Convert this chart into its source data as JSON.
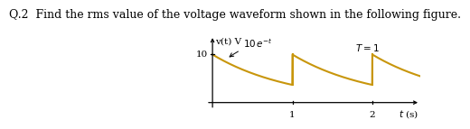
{
  "question_text": "Q.2  Find the rms value of the voltage waveform shown in the following figure.",
  "ylabel": "v(t) V",
  "xlabel": "t (s)",
  "y_tick_label": "10",
  "y_tick_val": 10,
  "x_tick_labels": [
    "1",
    "2"
  ],
  "x_tick_vals": [
    1,
    2
  ],
  "T_label": "T = 1",
  "waveform_color": "#C8960C",
  "background_color": "#ffffff",
  "xlim": [
    -0.08,
    2.6
  ],
  "ylim": [
    -1.5,
    14
  ],
  "period": 1.0,
  "amplitude": 10,
  "decay": 1.0,
  "num_periods": 3,
  "question_fontsize": 9.0,
  "axis_label_fontsize": 7.5,
  "tick_fontsize": 7.5,
  "formula_fontsize": 7.5,
  "T_label_fontsize": 7.5
}
